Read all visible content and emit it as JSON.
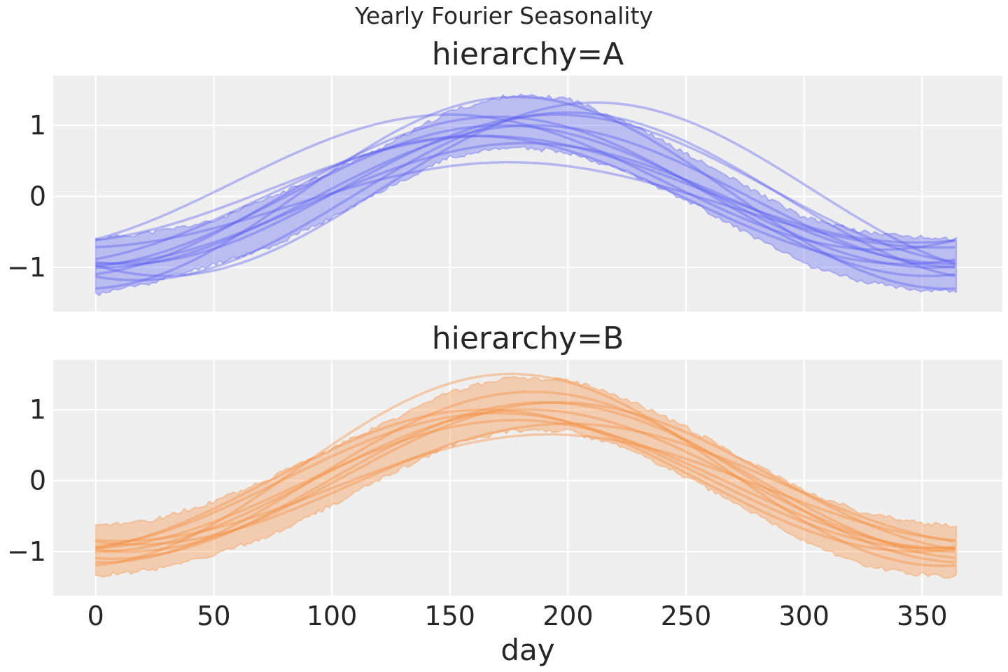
{
  "figure": {
    "suptitle": "Yearly Fourier Seasonality",
    "background": "#eeeeee",
    "grid_color": "#ffffff"
  },
  "chart_data": [
    {
      "type": "line",
      "title": "hierarchy=A",
      "color": "#5b5ef0",
      "xlabel": "",
      "ylabel": "",
      "xlim": [
        -18,
        384
      ],
      "ylim": [
        -1.62,
        1.7
      ],
      "xticks": [
        0,
        50,
        100,
        150,
        200,
        250,
        300,
        350
      ],
      "xtick_labels": [
        "",
        "",
        "",
        "",
        "",
        "",
        "",
        ""
      ],
      "yticks": [
        1,
        0,
        -1
      ],
      "ytick_labels": [
        "1",
        "0",
        "−1"
      ],
      "grid": true,
      "band": {
        "x": [
          0,
          25,
          50,
          75,
          100,
          125,
          150,
          175,
          200,
          225,
          250,
          275,
          300,
          325,
          350,
          365
        ],
        "upper": [
          -0.6,
          -0.5,
          -0.35,
          0.0,
          0.35,
          0.75,
          1.2,
          1.42,
          1.38,
          1.05,
          0.6,
          0.15,
          -0.3,
          -0.5,
          -0.58,
          -0.6
        ],
        "lower": [
          -1.38,
          -1.2,
          -0.95,
          -0.7,
          -0.3,
          0.15,
          0.55,
          0.7,
          0.62,
          0.35,
          -0.05,
          -0.5,
          -0.95,
          -1.2,
          -1.32,
          -1.33
        ]
      },
      "series": [
        {
          "offset": 0.0,
          "amp": 1.0,
          "phase": 172
        },
        {
          "offset": 0.0,
          "amp": 1.12,
          "phase": 170
        },
        {
          "offset": -0.1,
          "amp": 0.85,
          "phase": 182
        },
        {
          "offset": 0.1,
          "amp": 1.05,
          "phase": 195
        },
        {
          "offset": -0.05,
          "amp": 0.9,
          "phase": 160
        },
        {
          "offset": 0.1,
          "amp": 1.22,
          "phase": 212
        },
        {
          "offset": 0.0,
          "amp": 1.0,
          "phase": 185
        },
        {
          "offset": 0.05,
          "amp": 1.35,
          "phase": 178
        },
        {
          "offset": -0.12,
          "amp": 0.6,
          "phase": 175
        },
        {
          "offset": 0.2,
          "amp": 0.95,
          "phase": 150
        },
        {
          "offset": 0.0,
          "amp": 1.18,
          "phase": 200
        },
        {
          "offset": 0.1,
          "amp": 0.75,
          "phase": 165
        }
      ]
    },
    {
      "type": "line",
      "title": "hierarchy=B",
      "color": "#f58b3b",
      "xlabel": "day",
      "ylabel": "",
      "xlim": [
        -18,
        384
      ],
      "ylim": [
        -1.62,
        1.7
      ],
      "xticks": [
        0,
        50,
        100,
        150,
        200,
        250,
        300,
        350
      ],
      "xtick_labels": [
        "0",
        "50",
        "100",
        "150",
        "200",
        "250",
        "300",
        "350"
      ],
      "yticks": [
        1,
        0,
        -1
      ],
      "ytick_labels": [
        "1",
        "0",
        "−1"
      ],
      "grid": true,
      "band": {
        "x": [
          0,
          25,
          50,
          75,
          100,
          125,
          150,
          175,
          200,
          225,
          250,
          275,
          300,
          325,
          350,
          365
        ],
        "upper": [
          -0.65,
          -0.55,
          -0.3,
          0.05,
          0.45,
          0.85,
          1.25,
          1.45,
          1.42,
          1.15,
          0.75,
          0.3,
          -0.15,
          -0.45,
          -0.6,
          -0.65
        ],
        "lower": [
          -1.35,
          -1.25,
          -1.05,
          -0.75,
          -0.35,
          0.1,
          0.5,
          0.7,
          0.7,
          0.45,
          0.05,
          -0.4,
          -0.85,
          -1.2,
          -1.33,
          -1.35
        ]
      },
      "series": [
        {
          "offset": 0.0,
          "amp": 1.0,
          "phase": 183
        },
        {
          "offset": 0.0,
          "amp": 1.1,
          "phase": 190
        },
        {
          "offset": -0.05,
          "amp": 0.9,
          "phase": 178
        },
        {
          "offset": 0.05,
          "amp": 1.05,
          "phase": 196
        },
        {
          "offset": 0.0,
          "amp": 0.95,
          "phase": 170
        },
        {
          "offset": 0.15,
          "amp": 1.35,
          "phase": 176
        },
        {
          "offset": -0.05,
          "amp": 0.85,
          "phase": 200
        },
        {
          "offset": 0.05,
          "amp": 1.2,
          "phase": 185
        },
        {
          "offset": -0.1,
          "amp": 0.75,
          "phase": 192
        },
        {
          "offset": 0.0,
          "amp": 1.0,
          "phase": 165
        }
      ]
    }
  ]
}
